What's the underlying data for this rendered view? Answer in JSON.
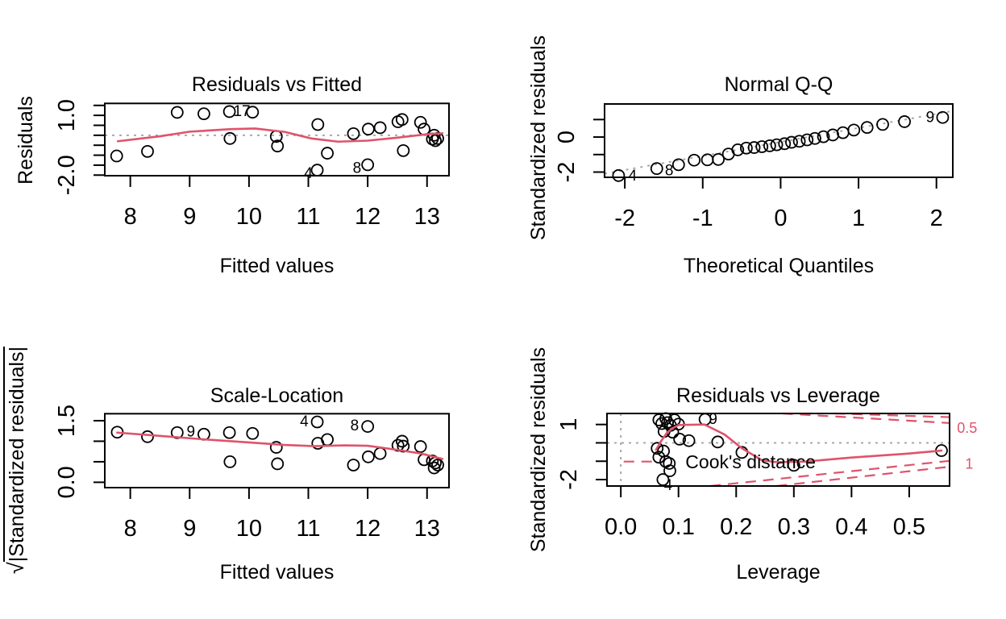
{
  "colors": {
    "accent_red": "#DF536B",
    "reference_gray": "#a8a8a8",
    "point_stroke": "#000000",
    "background": "#ffffff"
  },
  "chart_data": [
    {
      "id": "residuals-vs-fitted",
      "type": "scatter",
      "title": "Residuals vs Fitted",
      "xlabel": "Fitted values",
      "ylabel": "Residuals",
      "xlim": [
        7.57,
        13.37
      ],
      "ylim": [
        -2.03,
        1.6
      ],
      "x_ticks": {
        "values": [
          8,
          9,
          10,
          11,
          12,
          13
        ],
        "labels": [
          "8",
          "9",
          "10",
          "11",
          "12",
          "13"
        ]
      },
      "y_ticks": {
        "values": [
          1.5,
          1.0,
          0.5,
          0.0,
          -0.5,
          -1.0,
          -1.5,
          -2.0
        ],
        "labels": [
          "",
          "1.0",
          "",
          "",
          "",
          "",
          "",
          "-2.0"
        ]
      },
      "ref_lines": [
        {
          "kind": "hline",
          "y": 0
        }
      ],
      "points": [
        [
          7.77,
          -1.04
        ],
        [
          8.29,
          -0.81
        ],
        [
          8.79,
          1.15
        ],
        [
          9.24,
          1.08
        ],
        [
          9.67,
          1.19
        ],
        [
          10.06,
          1.16
        ],
        [
          9.68,
          -0.16
        ],
        [
          10.46,
          -0.06
        ],
        [
          10.48,
          -0.54
        ],
        [
          11.16,
          0.54
        ],
        [
          11.32,
          -0.9
        ],
        [
          11.15,
          -1.75
        ],
        [
          12.0,
          -1.48
        ],
        [
          11.76,
          0.08
        ],
        [
          12.01,
          0.31
        ],
        [
          12.21,
          0.38
        ],
        [
          12.51,
          0.68
        ],
        [
          12.58,
          0.79
        ],
        [
          12.6,
          -0.77
        ],
        [
          12.89,
          0.65
        ],
        [
          12.95,
          0.31
        ],
        [
          13.12,
          0.0
        ],
        [
          13.09,
          -0.19
        ],
        [
          13.14,
          -0.27
        ],
        [
          13.18,
          -0.16
        ]
      ],
      "point_labels": [
        {
          "text": "17",
          "x": 9.88,
          "y": 1.24
        },
        {
          "text": "4",
          "x": 11.0,
          "y": -1.86
        },
        {
          "text": "8",
          "x": 11.82,
          "y": -1.6
        }
      ],
      "smoother": [
        [
          7.79,
          -0.3
        ],
        [
          8.5,
          -0.05
        ],
        [
          9.0,
          0.18
        ],
        [
          9.7,
          0.31
        ],
        [
          10.1,
          0.34
        ],
        [
          10.6,
          0.17
        ],
        [
          11.05,
          -0.16
        ],
        [
          11.5,
          -0.32
        ],
        [
          12.0,
          -0.27
        ],
        [
          12.5,
          -0.12
        ],
        [
          13.0,
          0.05
        ],
        [
          13.26,
          0.1
        ]
      ],
      "annotations": []
    },
    {
      "id": "normal-qq",
      "type": "scatter",
      "title": "Normal Q-Q",
      "xlabel": "Theoretical Quantiles",
      "ylabel": "Standardized residuals",
      "xlim": [
        -2.26,
        2.21
      ],
      "ylim": [
        -2.3,
        1.89
      ],
      "x_ticks": {
        "values": [
          -2,
          -1,
          0,
          1,
          2
        ],
        "labels": [
          "-2",
          "-1",
          "0",
          "1",
          "2"
        ]
      },
      "y_ticks": {
        "values": [
          1,
          0,
          -1,
          -2
        ],
        "labels": [
          "",
          "0",
          "",
          "-2"
        ]
      },
      "ref_lines": [
        {
          "kind": "segment",
          "x1": -2.26,
          "y1": -2.09,
          "x2": 2.21,
          "y2": 1.49
        }
      ],
      "points": [
        [
          -2.08,
          -2.2
        ],
        [
          -1.59,
          -1.8
        ],
        [
          -1.31,
          -1.58
        ],
        [
          -1.11,
          -1.32
        ],
        [
          -0.94,
          -1.3
        ],
        [
          -0.8,
          -1.28
        ],
        [
          -0.67,
          -0.97
        ],
        [
          -0.55,
          -0.73
        ],
        [
          -0.44,
          -0.63
        ],
        [
          -0.34,
          -0.6
        ],
        [
          -0.24,
          -0.55
        ],
        [
          -0.14,
          -0.5
        ],
        [
          -0.05,
          -0.44
        ],
        [
          0.05,
          -0.38
        ],
        [
          0.14,
          -0.3
        ],
        [
          0.24,
          -0.24
        ],
        [
          0.34,
          -0.16
        ],
        [
          0.44,
          -0.08
        ],
        [
          0.55,
          0.02
        ],
        [
          0.67,
          0.12
        ],
        [
          0.8,
          0.25
        ],
        [
          0.94,
          0.4
        ],
        [
          1.11,
          0.55
        ],
        [
          1.31,
          0.72
        ],
        [
          1.59,
          0.88
        ],
        [
          2.08,
          1.12
        ]
      ],
      "point_labels": [
        {
          "text": "4",
          "x": -1.9,
          "y": -2.16
        },
        {
          "text": "8",
          "x": -1.43,
          "y": -1.86
        },
        {
          "text": "9",
          "x": 1.92,
          "y": 1.17
        }
      ],
      "smoother": null,
      "annotations": []
    },
    {
      "id": "scale-location",
      "type": "scatter",
      "title": "Scale-Location",
      "xlabel": "Fitted values",
      "ylabel": "√|Standardized residuals|",
      "ylabel_radical": "√",
      "ylabel_body": "|Standardized residuals|",
      "xlim": [
        7.57,
        13.37
      ],
      "ylim": [
        -0.13,
        1.67
      ],
      "x_ticks": {
        "values": [
          8,
          9,
          10,
          11,
          12,
          13
        ],
        "labels": [
          "8",
          "9",
          "10",
          "11",
          "12",
          "13"
        ]
      },
      "y_ticks": {
        "values": [
          1.5,
          1.0,
          0.5,
          0.0
        ],
        "labels": [
          "1.5",
          "",
          "",
          "0.0"
        ]
      },
      "ref_lines": [],
      "points": [
        [
          7.78,
          1.22
        ],
        [
          8.29,
          1.11
        ],
        [
          8.79,
          1.21
        ],
        [
          9.24,
          1.17
        ],
        [
          9.67,
          1.21
        ],
        [
          10.06,
          1.19
        ],
        [
          9.68,
          0.5
        ],
        [
          10.46,
          0.85
        ],
        [
          10.48,
          0.45
        ],
        [
          11.16,
          0.95
        ],
        [
          11.32,
          1.04
        ],
        [
          11.15,
          1.47
        ],
        [
          12.0,
          1.36
        ],
        [
          11.76,
          0.42
        ],
        [
          12.01,
          0.62
        ],
        [
          12.21,
          0.7
        ],
        [
          12.51,
          0.9
        ],
        [
          12.58,
          1.0
        ],
        [
          12.6,
          0.88
        ],
        [
          12.89,
          0.87
        ],
        [
          12.95,
          0.55
        ],
        [
          13.09,
          0.52
        ],
        [
          13.12,
          0.35
        ],
        [
          13.14,
          0.47
        ],
        [
          13.18,
          0.42
        ]
      ],
      "point_labels": [
        {
          "text": "9",
          "x": 9.02,
          "y": 1.25
        },
        {
          "text": "4",
          "x": 10.93,
          "y": 1.5
        },
        {
          "text": "8",
          "x": 11.78,
          "y": 1.4
        }
      ],
      "smoother": [
        [
          7.78,
          1.21
        ],
        [
          8.5,
          1.13
        ],
        [
          9.2,
          1.05
        ],
        [
          10.0,
          0.97
        ],
        [
          10.6,
          0.91
        ],
        [
          11.1,
          0.88
        ],
        [
          11.6,
          0.9
        ],
        [
          12.0,
          0.89
        ],
        [
          12.5,
          0.79
        ],
        [
          12.9,
          0.7
        ],
        [
          13.26,
          0.57
        ]
      ],
      "annotations": []
    },
    {
      "id": "residuals-vs-leverage",
      "type": "scatter",
      "title": "Residuals vs Leverage",
      "xlabel": "Leverage",
      "ylabel": "Standardized residuals",
      "xlim": [
        -0.024,
        0.57
      ],
      "ylim": [
        -2.35,
        1.6
      ],
      "x_ticks": {
        "values": [
          0.0,
          0.1,
          0.2,
          0.3,
          0.4,
          0.5
        ],
        "labels": [
          "0.0",
          "0.1",
          "0.2",
          "0.3",
          "0.4",
          "0.5"
        ]
      },
      "y_ticks": {
        "values": [
          1,
          0,
          -1,
          -2
        ],
        "labels": [
          "1",
          "",
          "",
          "-2"
        ]
      },
      "ref_lines": [
        {
          "kind": "hline",
          "y": 0
        },
        {
          "kind": "vline",
          "x": 0
        }
      ],
      "points": [
        [
          0.066,
          1.25
        ],
        [
          0.078,
          1.32
        ],
        [
          0.093,
          1.25
        ],
        [
          0.071,
          1.05
        ],
        [
          0.081,
          1.1
        ],
        [
          0.086,
          0.95
        ],
        [
          0.075,
          0.62
        ],
        [
          0.09,
          0.58
        ],
        [
          0.1,
          1.02
        ],
        [
          0.102,
          0.2
        ],
        [
          0.063,
          -0.3
        ],
        [
          0.074,
          -0.45
        ],
        [
          0.066,
          -0.78
        ],
        [
          0.078,
          -1.02
        ],
        [
          0.084,
          -1.12
        ],
        [
          0.085,
          -1.52
        ],
        [
          0.073,
          -2.0
        ],
        [
          0.118,
          0.12
        ],
        [
          0.146,
          1.28
        ],
        [
          0.168,
          0.05
        ],
        [
          0.21,
          -0.52
        ],
        [
          0.3,
          -1.22
        ],
        [
          0.556,
          -0.42
        ]
      ],
      "point_labels": [
        {
          "text": "9",
          "x": 0.16,
          "y": 1.33
        },
        {
          "text": "4",
          "x": 0.082,
          "y": -2.26
        }
      ],
      "smoother": [
        [
          0.061,
          -0.38
        ],
        [
          0.07,
          0.1
        ],
        [
          0.08,
          0.55
        ],
        [
          0.09,
          0.8
        ],
        [
          0.1,
          0.97
        ],
        [
          0.145,
          1.0
        ],
        [
          0.18,
          0.45
        ],
        [
          0.21,
          -0.3
        ],
        [
          0.245,
          -0.95
        ],
        [
          0.27,
          -1.05
        ],
        [
          0.32,
          -1.02
        ],
        [
          0.4,
          -0.8
        ],
        [
          0.5,
          -0.58
        ],
        [
          0.556,
          -0.42
        ]
      ],
      "cook_lines": [
        {
          "x1": 0.28,
          "y1": 1.6,
          "x2": 0.57,
          "y2": 1.08
        },
        {
          "x1": 0.37,
          "y1": 1.6,
          "x2": 0.57,
          "y2": 1.4
        },
        {
          "x1": 0.155,
          "y1": -2.35,
          "x2": 0.57,
          "y2": -0.98
        },
        {
          "x1": 0.27,
          "y1": -2.35,
          "x2": 0.57,
          "y2": -1.3
        },
        {
          "x1": 0.005,
          "y1": -1.02,
          "x2": 0.063,
          "y2": -1.02
        }
      ],
      "annotations": [
        {
          "text": "Cook's distance",
          "x": 0.112,
          "y": -1.02,
          "anchor": "start",
          "size": 23,
          "color": "#000000"
        },
        {
          "text": "0.5",
          "x": 0.583,
          "y": 0.83,
          "anchor": "start",
          "size": 18,
          "color": "#DF536B"
        },
        {
          "text": "1",
          "x": 0.597,
          "y": -1.12,
          "anchor": "start",
          "size": 18,
          "color": "#DF536B"
        }
      ]
    }
  ]
}
